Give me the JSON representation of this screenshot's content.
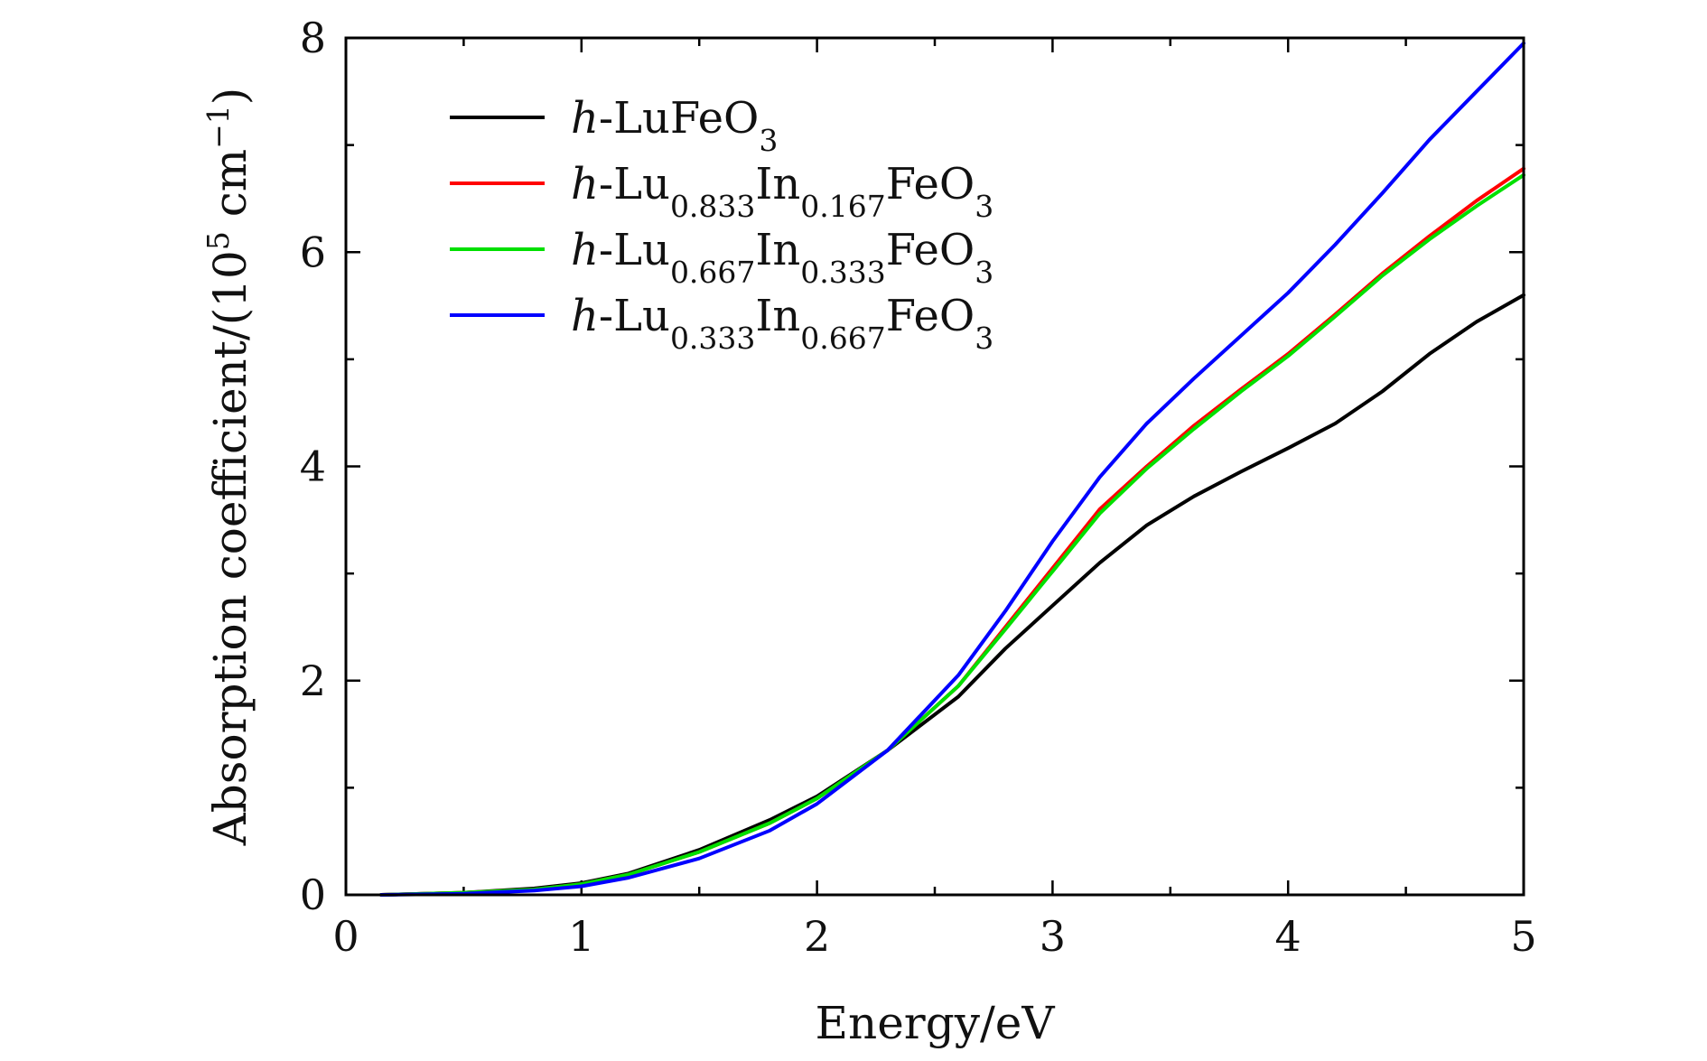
{
  "chart_data": {
    "type": "line",
    "xlabel": "Energy/eV",
    "ylabel": {
      "main": "Absorption coefficient/(10",
      "sup": "5",
      "unit": " cm",
      "unit_sup": "−1",
      "close": ")"
    },
    "xlim": [
      0,
      5
    ],
    "ylim": [
      0,
      8
    ],
    "xticks": [
      0,
      1,
      2,
      3,
      4,
      5
    ],
    "yticks": [
      0,
      2,
      4,
      6,
      8
    ],
    "x_minor_step": 0.5,
    "y_minor_step": 1,
    "grid": false,
    "legend_position": "top-left",
    "series": [
      {
        "name": "h-LuFeO3",
        "legend": {
          "prefix": "h",
          "text": "-LuFeO",
          "sub": "3"
        },
        "color": "#000000",
        "x": [
          0.15,
          0.5,
          0.8,
          1.0,
          1.2,
          1.5,
          1.8,
          2.0,
          2.3,
          2.6,
          2.8,
          3.0,
          3.2,
          3.4,
          3.6,
          3.8,
          4.0,
          4.2,
          4.4,
          4.6,
          4.8,
          5.0
        ],
        "y": [
          0.0,
          0.02,
          0.06,
          0.11,
          0.2,
          0.42,
          0.7,
          0.92,
          1.35,
          1.85,
          2.3,
          2.7,
          3.1,
          3.45,
          3.72,
          3.95,
          4.17,
          4.4,
          4.7,
          5.05,
          5.35,
          5.6
        ]
      },
      {
        "name": "h-Lu0.833In0.167FeO3",
        "legend": {
          "prefix": "h",
          "parts": [
            {
              "t": "-Lu"
            },
            {
              "s": "0.833"
            },
            {
              "t": "In"
            },
            {
              "s": "0.167"
            },
            {
              "t": "FeO"
            },
            {
              "s": "3"
            }
          ]
        },
        "color": "#ff0000",
        "x": [
          0.15,
          0.5,
          0.8,
          1.0,
          1.2,
          1.5,
          1.8,
          2.0,
          2.3,
          2.6,
          2.8,
          3.0,
          3.2,
          3.4,
          3.6,
          3.8,
          4.0,
          4.2,
          4.4,
          4.6,
          4.8,
          5.0
        ],
        "y": [
          0.0,
          0.02,
          0.05,
          0.1,
          0.19,
          0.4,
          0.67,
          0.9,
          1.35,
          1.95,
          2.5,
          3.05,
          3.6,
          4.0,
          4.38,
          4.72,
          5.05,
          5.42,
          5.8,
          6.15,
          6.48,
          6.78
        ]
      },
      {
        "name": "h-Lu0.667In0.333FeO3",
        "legend": {
          "prefix": "h",
          "parts": [
            {
              "t": "-Lu"
            },
            {
              "s": "0.667"
            },
            {
              "t": "In"
            },
            {
              "s": "0.333"
            },
            {
              "t": "FeO"
            },
            {
              "s": "3"
            }
          ]
        },
        "color": "#00e000",
        "x": [
          0.15,
          0.5,
          0.8,
          1.0,
          1.2,
          1.5,
          1.8,
          2.0,
          2.3,
          2.6,
          2.8,
          3.0,
          3.2,
          3.4,
          3.6,
          3.8,
          4.0,
          4.2,
          4.4,
          4.6,
          4.8,
          5.0
        ],
        "y": [
          0.0,
          0.02,
          0.05,
          0.1,
          0.19,
          0.4,
          0.67,
          0.9,
          1.35,
          1.95,
          2.48,
          3.02,
          3.56,
          3.98,
          4.35,
          4.7,
          5.03,
          5.4,
          5.78,
          6.12,
          6.43,
          6.72
        ]
      },
      {
        "name": "h-Lu0.333In0.667FeO3",
        "legend": {
          "prefix": "h",
          "parts": [
            {
              "t": "-Lu"
            },
            {
              "s": "0.333"
            },
            {
              "t": "In"
            },
            {
              "s": "0.667"
            },
            {
              "t": "FeO"
            },
            {
              "s": "3"
            }
          ]
        },
        "color": "#0000ff",
        "x": [
          0.15,
          0.5,
          0.8,
          1.0,
          1.2,
          1.5,
          1.8,
          2.0,
          2.3,
          2.6,
          2.8,
          3.0,
          3.2,
          3.4,
          3.6,
          3.8,
          4.0,
          4.2,
          4.4,
          4.6,
          4.8,
          5.0
        ],
        "y": [
          0.0,
          0.01,
          0.04,
          0.08,
          0.16,
          0.34,
          0.6,
          0.85,
          1.35,
          2.05,
          2.65,
          3.3,
          3.9,
          4.4,
          4.82,
          5.22,
          5.62,
          6.07,
          6.55,
          7.05,
          7.5,
          7.95
        ]
      }
    ]
  }
}
